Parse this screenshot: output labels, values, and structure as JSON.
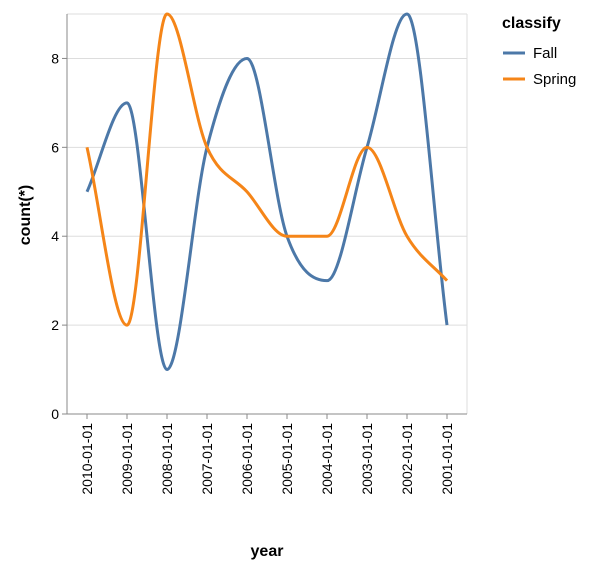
{
  "chart_data": {
    "type": "line",
    "title": "",
    "xlabel": "year",
    "ylabel": "count(*)",
    "categories": [
      "2010-01-01",
      "2009-01-01",
      "2008-01-01",
      "2007-01-01",
      "2006-01-01",
      "2005-01-01",
      "2004-01-01",
      "2003-01-01",
      "2002-01-01",
      "2001-01-01"
    ],
    "series": [
      {
        "name": "Fall",
        "color": "#4c78a8",
        "values": [
          5,
          7,
          1,
          6,
          8,
          4,
          3,
          6,
          9,
          2
        ]
      },
      {
        "name": "Spring",
        "color": "#f58518",
        "values": [
          6,
          2,
          9,
          6,
          5,
          4,
          4,
          6,
          4,
          3
        ]
      }
    ],
    "ylim": [
      0,
      9
    ],
    "yticks": [
      0,
      2,
      4,
      6,
      8
    ],
    "grid": true,
    "legend": {
      "title": "classify",
      "placement": "top-right"
    }
  }
}
